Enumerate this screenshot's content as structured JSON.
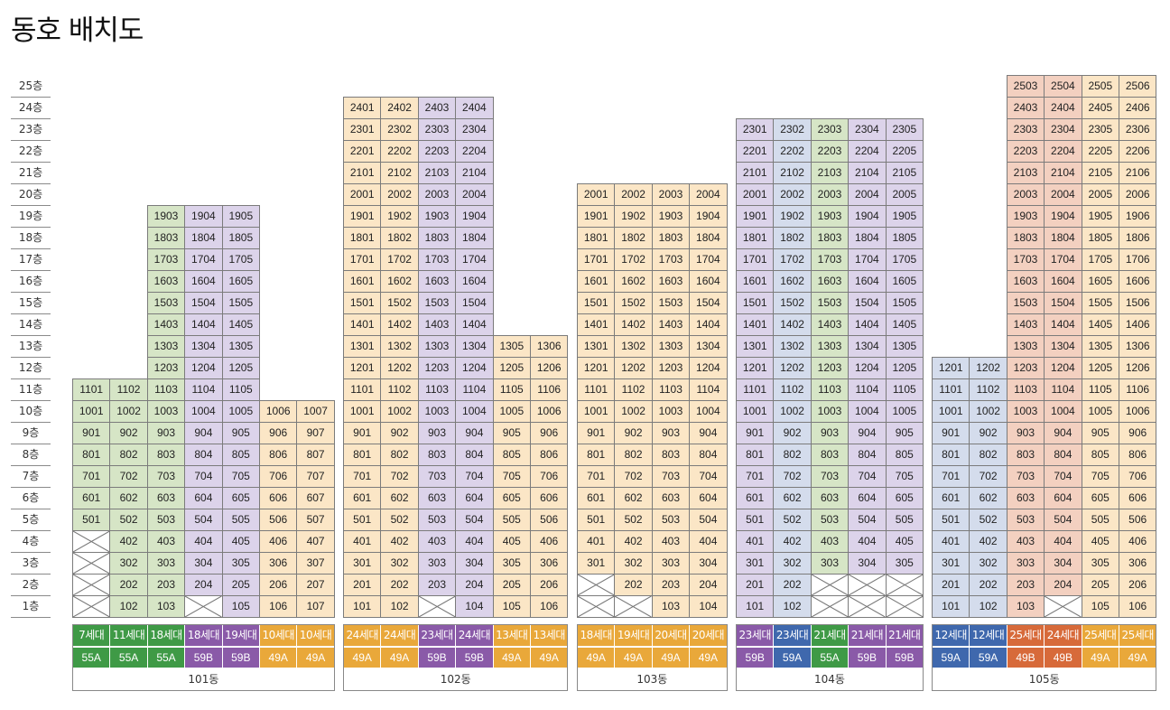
{
  "page": {
    "title": "동호 배치도"
  },
  "floor_labels": [
    "25층",
    "24층",
    "23층",
    "22층",
    "21층",
    "20층",
    "19층",
    "18층",
    "17층",
    "16층",
    "15층",
    "14층",
    "13층",
    "12층",
    "11층",
    "10층",
    "9층",
    "8층",
    "7층",
    "6층",
    "5층",
    "4층",
    "3층",
    "2층",
    "1층"
  ],
  "type_colors": {
    "55A": "#3f9a46",
    "59B": "#8a5aa8",
    "49A": "#e9a83a",
    "59A": "#3f68ad",
    "49B": "#d76a3a"
  },
  "buildings": [
    {
      "name": "101동",
      "lines": [
        {
          "households": "7세대",
          "type": "55A",
          "top": 11,
          "missing": [
            1,
            2,
            3,
            4
          ]
        },
        {
          "households": "11세대",
          "type": "55A",
          "top": 11,
          "missing": []
        },
        {
          "households": "18세대",
          "type": "55A",
          "top": 19,
          "missing": []
        },
        {
          "households": "18세대",
          "type": "59B",
          "top": 19,
          "missing": [
            1
          ]
        },
        {
          "households": "19세대",
          "type": "59B",
          "top": 19,
          "missing": []
        },
        {
          "households": "10세대",
          "type": "49A",
          "top": 10,
          "missing": []
        },
        {
          "households": "10세대",
          "type": "49A",
          "top": 10,
          "missing": []
        }
      ]
    },
    {
      "name": "102동",
      "lines": [
        {
          "households": "24세대",
          "type": "49A",
          "top": 24,
          "missing": []
        },
        {
          "households": "24세대",
          "type": "49A",
          "top": 24,
          "missing": []
        },
        {
          "households": "23세대",
          "type": "59B",
          "top": 24,
          "missing": [
            1
          ]
        },
        {
          "households": "24세대",
          "type": "59B",
          "top": 24,
          "missing": []
        },
        {
          "households": "13세대",
          "type": "49A",
          "top": 13,
          "missing": []
        },
        {
          "households": "13세대",
          "type": "49A",
          "top": 13,
          "missing": []
        }
      ]
    },
    {
      "name": "103동",
      "lines": [
        {
          "households": "18세대",
          "type": "49A",
          "top": 20,
          "missing": [
            1,
            2
          ]
        },
        {
          "households": "19세대",
          "type": "49A",
          "top": 20,
          "missing": [
            1
          ]
        },
        {
          "households": "20세대",
          "type": "49A",
          "top": 20,
          "missing": []
        },
        {
          "households": "20세대",
          "type": "49A",
          "top": 20,
          "missing": []
        }
      ]
    },
    {
      "name": "104동",
      "lines": [
        {
          "households": "23세대",
          "type": "59B",
          "top": 23,
          "missing": []
        },
        {
          "households": "23세대",
          "type": "59A",
          "top": 23,
          "missing": []
        },
        {
          "households": "21세대",
          "type": "55A",
          "top": 23,
          "missing": [
            1,
            2
          ]
        },
        {
          "households": "21세대",
          "type": "59B",
          "top": 23,
          "missing": [
            1,
            2
          ]
        },
        {
          "households": "21세대",
          "type": "59B",
          "top": 23,
          "missing": [
            1,
            2
          ]
        }
      ]
    },
    {
      "name": "105동",
      "lines": [
        {
          "households": "12세대",
          "type": "59A",
          "top": 12,
          "missing": []
        },
        {
          "households": "12세대",
          "type": "59A",
          "top": 12,
          "missing": []
        },
        {
          "households": "25세대",
          "type": "49B",
          "top": 25,
          "missing": []
        },
        {
          "households": "24세대",
          "type": "49B",
          "top": 25,
          "missing": [
            1
          ]
        },
        {
          "households": "25세대",
          "type": "49A",
          "top": 25,
          "missing": []
        },
        {
          "households": "25세대",
          "type": "49A",
          "top": 25,
          "missing": []
        }
      ]
    }
  ]
}
